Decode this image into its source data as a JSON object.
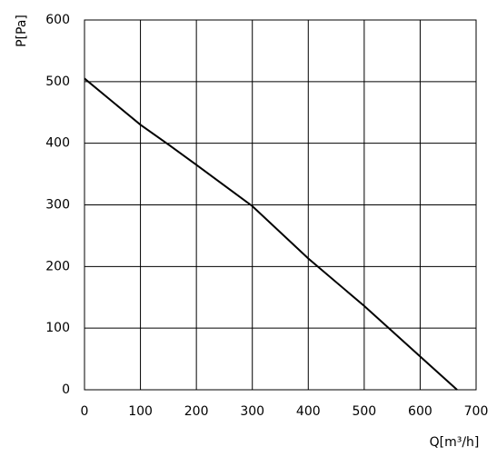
{
  "chart_data": {
    "type": "line",
    "x_label": "Q[m³/h]",
    "y_label": "P[Pa]",
    "x": [
      0,
      100,
      150,
      200,
      300,
      400,
      500,
      600,
      666
    ],
    "series": [
      {
        "color": "#000000",
        "values": [
          505,
          430,
          398,
          365,
          298,
          213,
          136,
          54,
          0
        ]
      }
    ],
    "xlim": [
      0,
      700
    ],
    "ylim": [
      0,
      600
    ],
    "xticks": [
      0,
      100,
      200,
      300,
      400,
      500,
      600,
      700
    ],
    "yticks": [
      0,
      100,
      200,
      300,
      400,
      500,
      600
    ],
    "grid": true
  }
}
